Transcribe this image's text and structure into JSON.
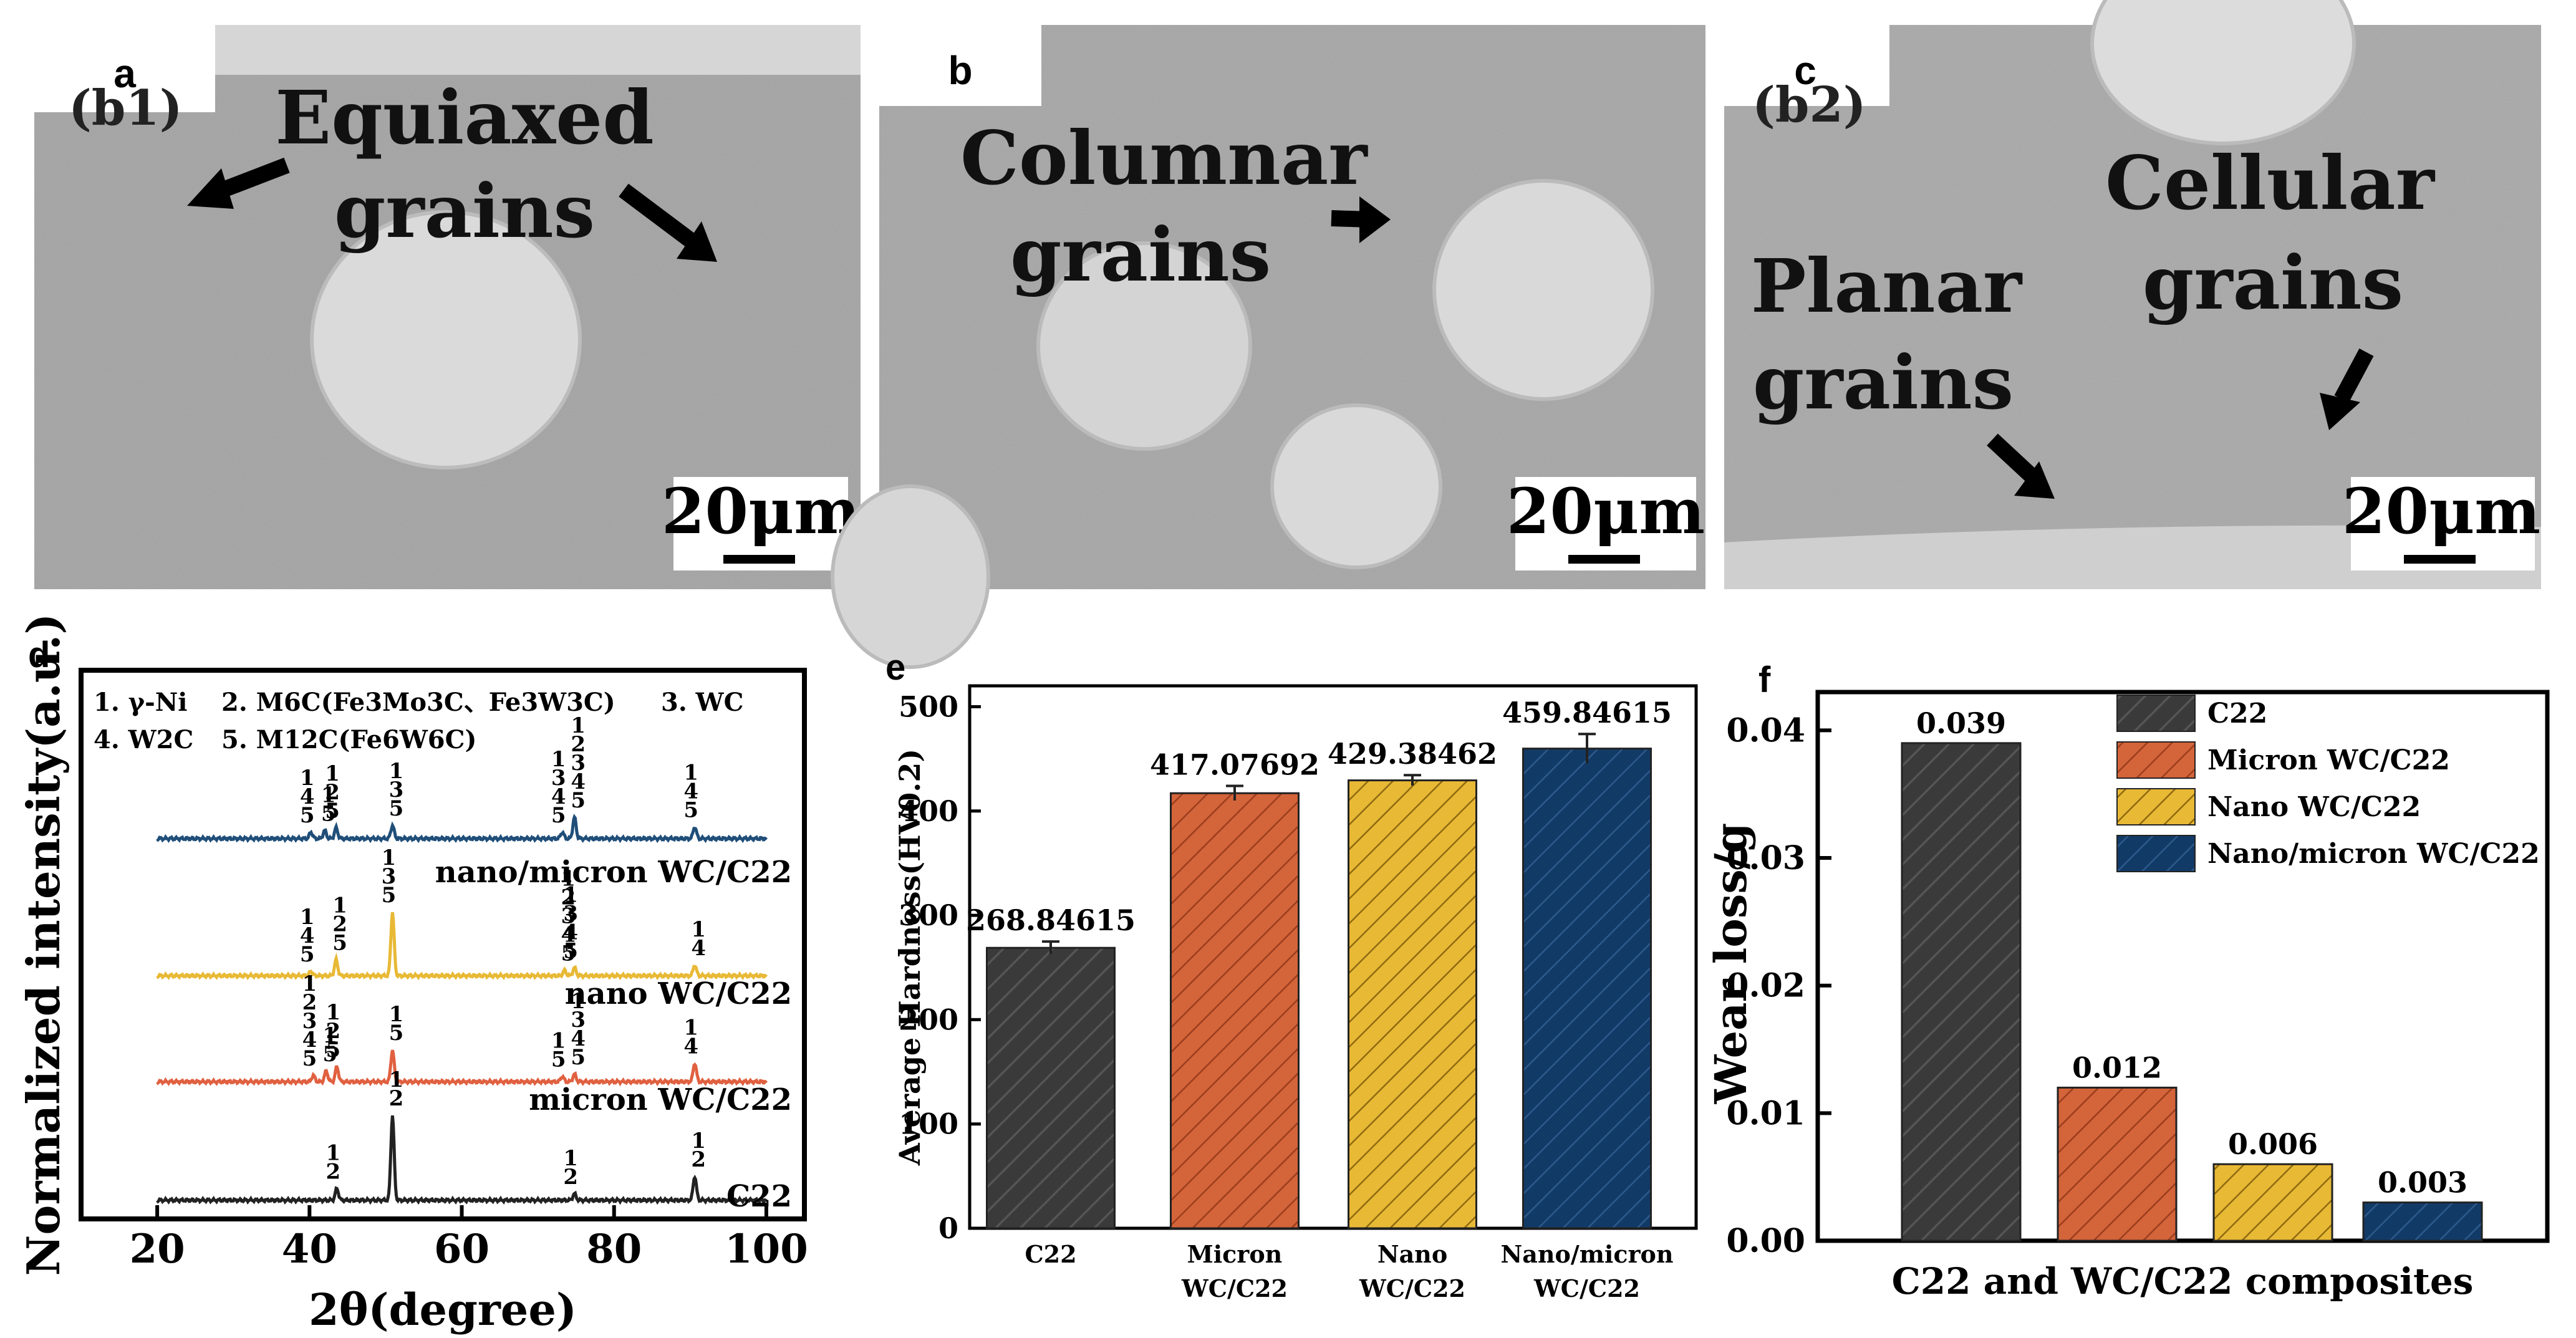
{
  "colors": {
    "c22": "#3a3a3a",
    "micron": "#d4643a",
    "nano": "#e8b935",
    "nanomicron": "#123a66",
    "xrd_blue": "#1f4e79",
    "xrd_yellow": "#e8b935",
    "xrd_red": "#e06040",
    "xrd_black": "#222222"
  },
  "panels": {
    "a": {
      "letter": "a",
      "label1": "Equiaxed",
      "label2": "grains",
      "scale": "20μm",
      "corner": "(b1)"
    },
    "b": {
      "letter": "b",
      "label1": "Columnar",
      "label2": "grains",
      "scale": "20μm"
    },
    "c": {
      "letter": "c",
      "label1": "Cellular",
      "label2": "grains",
      "label3": "Planar",
      "label4": "grains",
      "scale": "20μm",
      "corner": "(b2)"
    }
  },
  "chart_data": [
    {
      "panel": "d",
      "type": "line",
      "title": "",
      "xlabel": "2θ(degree)",
      "ylabel": "Normalized intensity(a.u.)",
      "xlim": [
        10,
        105
      ],
      "xticks": [
        20,
        40,
        60,
        80,
        100
      ],
      "legend_lines": [
        "1. γ-Ni",
        "2. M6C(Fe3Mo3C、Fe3W3C)",
        "3. WC",
        "4. W2C",
        "5. M12C(Fe6W6C)"
      ],
      "series": [
        {
          "name": "nano/micron WC/C22",
          "peaks": [
            {
              "x": 40.2,
              "h": 0.12,
              "labels": [
                "1",
                "4",
                "5"
              ]
            },
            {
              "x": 42.0,
              "h": 0.15,
              "labels": [
                "1",
                "5"
              ]
            },
            {
              "x": 43.5,
              "h": 0.2,
              "labels": [
                "1",
                "2",
                "5"
              ]
            },
            {
              "x": 50.9,
              "h": 0.25,
              "labels": [
                "1",
                "3",
                "5"
              ]
            },
            {
              "x": 73.2,
              "h": 0.12,
              "labels": [
                "1",
                "3",
                "4",
                "5"
              ]
            },
            {
              "x": 74.8,
              "h": 0.4,
              "labels": [
                "1",
                "2",
                "3",
                "4",
                "5"
              ]
            },
            {
              "x": 90.6,
              "h": 0.22,
              "labels": [
                "1",
                "4",
                "5"
              ]
            }
          ]
        },
        {
          "name": "nano WC/C22",
          "peaks": [
            {
              "x": 40.2,
              "h": 0.08,
              "labels": [
                "1",
                "4",
                "5"
              ]
            },
            {
              "x": 43.5,
              "h": 0.3,
              "labels": [
                "1",
                "2",
                "5"
              ]
            },
            {
              "x": 50.9,
              "h": 1.2,
              "labels": [
                "1",
                "3",
                "5"
              ]
            },
            {
              "x": 73.5,
              "h": 0.1,
              "labels": [
                "1",
                "2",
                "3",
                "4",
                "5"
              ]
            },
            {
              "x": 74.8,
              "h": 0.15,
              "labels": [
                "1",
                "3",
                "4",
                "5"
              ]
            },
            {
              "x": 90.6,
              "h": 0.2,
              "labels": [
                "1",
                "4"
              ]
            }
          ]
        },
        {
          "name": "micron WC/C22",
          "peaks": [
            {
              "x": 40.5,
              "h": 0.12,
              "labels": [
                "1",
                "2",
                "3",
                "4",
                "5"
              ]
            },
            {
              "x": 42.2,
              "h": 0.2,
              "labels": [
                "1",
                "5"
              ]
            },
            {
              "x": 43.6,
              "h": 0.28,
              "labels": [
                "1",
                "2",
                "5"
              ]
            },
            {
              "x": 50.9,
              "h": 0.6,
              "labels": [
                "1",
                "5"
              ]
            },
            {
              "x": 73.2,
              "h": 0.1,
              "labels": [
                "1",
                "5"
              ]
            },
            {
              "x": 74.8,
              "h": 0.14,
              "labels": [
                "1",
                "3",
                "4",
                "5"
              ]
            },
            {
              "x": 90.6,
              "h": 0.35,
              "labels": [
                "1",
                "4"
              ]
            }
          ]
        },
        {
          "name": "C22",
          "peaks": [
            {
              "x": 43.6,
              "h": 0.22,
              "labels": [
                "1",
                "2"
              ]
            },
            {
              "x": 50.9,
              "h": 1.6,
              "labels": [
                "1",
                "2"
              ]
            },
            {
              "x": 74.8,
              "h": 0.12,
              "labels": [
                "1",
                "2"
              ]
            },
            {
              "x": 90.6,
              "h": 0.45,
              "labels": [
                "1",
                "2"
              ]
            }
          ]
        }
      ]
    },
    {
      "panel": "e",
      "type": "bar",
      "categories": [
        "C22",
        "Micron\nWC/C22",
        "Nano\nWC/C22",
        "Nano/micron\nWC/C22"
      ],
      "values": [
        268.84615,
        417.07692,
        429.38462,
        459.84615
      ],
      "value_labels": [
        "268.84615",
        "417.07692",
        "429.38462",
        "459.84615"
      ],
      "errors": [
        6,
        7,
        5,
        14
      ],
      "ylabel": "Average Hardness(HV0.2)",
      "ylim": [
        0,
        520
      ],
      "yticks": [
        0,
        100,
        200,
        300,
        400,
        500
      ]
    },
    {
      "panel": "f",
      "type": "bar",
      "categories": [
        "C22",
        "Micron WC/C22",
        "Nano WC/C22",
        "Nano/micron WC/C22"
      ],
      "values": [
        0.039,
        0.012,
        0.006,
        0.003
      ],
      "value_labels": [
        "0.039",
        "0.012",
        "0.006",
        "0.003"
      ],
      "xlabel": "C22 and WC/C22 composites",
      "ylabel": "Wear loss/g",
      "ylim": [
        0,
        0.043
      ],
      "yticks": [
        0.0,
        0.01,
        0.02,
        0.03,
        0.04
      ],
      "ytick_labels": [
        "0.00",
        "0.01",
        "0.02",
        "0.03",
        "0.04"
      ],
      "legend": [
        "C22",
        "Micron WC/C22",
        "Nano WC/C22",
        "Nano/micron WC/C22"
      ],
      "legend_pos": "top-right"
    }
  ],
  "panel_letters": {
    "d": "d",
    "e": "e",
    "f": "f"
  }
}
